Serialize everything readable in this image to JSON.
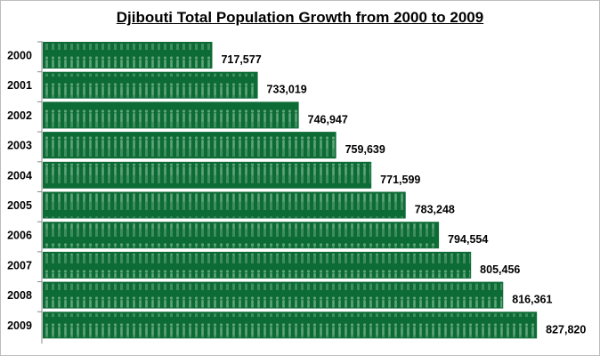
{
  "chart_data": {
    "type": "bar",
    "orientation": "horizontal",
    "title": "Djibouti Total Population Growth from 2000 to 2009",
    "categories": [
      "2000",
      "2001",
      "2002",
      "2003",
      "2004",
      "2005",
      "2006",
      "2007",
      "2008",
      "2009"
    ],
    "values": [
      717577,
      733019,
      746947,
      759639,
      771599,
      783248,
      794554,
      805456,
      816361,
      827820
    ],
    "data_labels": [
      "717,577",
      "733,019",
      "746,947",
      "759,639",
      "771,599",
      "783,248",
      "794,554",
      "805,456",
      "816,361",
      "827,820"
    ],
    "xlim": [
      660000,
      845000
    ],
    "grid": false,
    "legend": "none",
    "colors": {
      "bar": "#0d6b35",
      "pattern": "#5fa37a"
    }
  }
}
